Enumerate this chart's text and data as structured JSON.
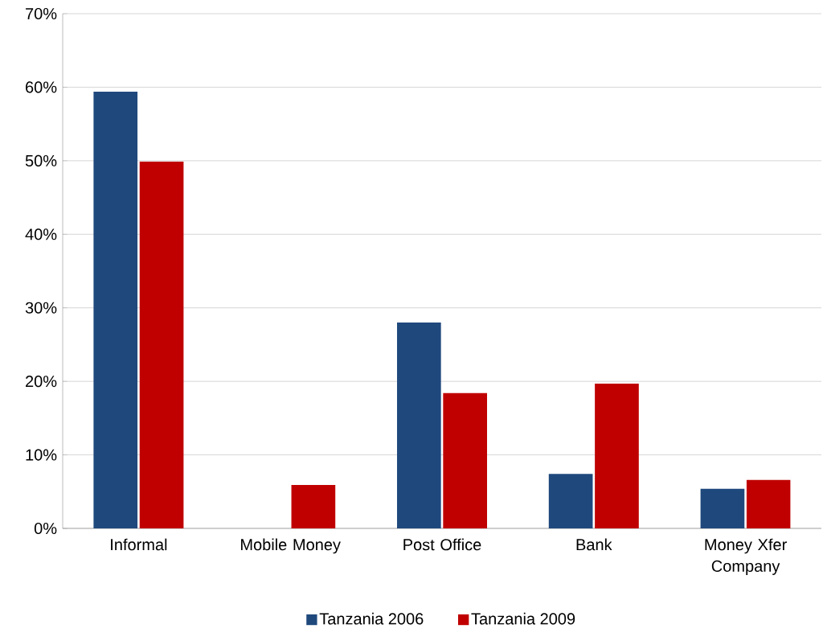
{
  "chart_data": {
    "type": "bar",
    "categories": [
      "Informal",
      "Mobile Money",
      "Post Office",
      "Bank",
      "Money Xfer Company"
    ],
    "series": [
      {
        "name": "Tanzania 2006",
        "color": "#1f497d",
        "values": [
          59.4,
          0,
          28.0,
          7.4,
          5.4
        ]
      },
      {
        "name": "Tanzania 2009",
        "color": "#c00000",
        "values": [
          49.9,
          5.9,
          18.4,
          19.7,
          6.6
        ]
      }
    ],
    "ylim": [
      0,
      70
    ],
    "yticks": [
      {
        "value": 0,
        "label": "0%"
      },
      {
        "value": 10,
        "label": "10%"
      },
      {
        "value": 20,
        "label": "20%"
      },
      {
        "value": 30,
        "label": "30%"
      },
      {
        "value": 40,
        "label": "40%"
      },
      {
        "value": 50,
        "label": "50%"
      },
      {
        "value": 60,
        "label": "60%"
      },
      {
        "value": 70,
        "label": "70%"
      }
    ],
    "grid": "y",
    "legend": "bottom"
  }
}
